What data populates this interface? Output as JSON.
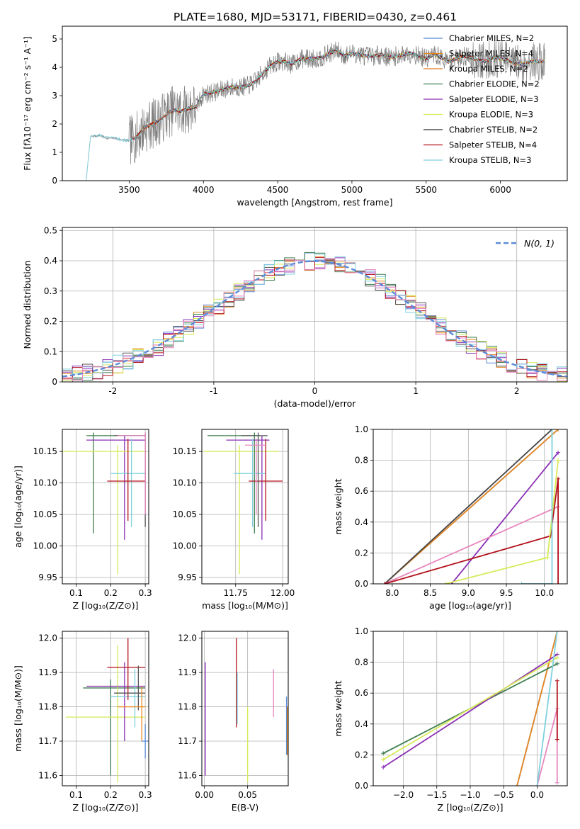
{
  "figure": {
    "title": "PLATE=1680, MJD=53171, FIBERID=0430, z=0.461"
  },
  "chart_data": [
    {
      "id": "spectrum",
      "type": "line",
      "xlabel": "wavelength [Angstrom, rest frame]",
      "ylabel": "Flux [fλ10⁻¹⁷ erg cm⁻² s⁻¹ A⁻¹]",
      "xlim": [
        3050,
        6450
      ],
      "ylim": [
        0,
        5.45
      ],
      "xticks": [
        3500,
        4000,
        4500,
        5000,
        5500,
        6000
      ],
      "yticks": [
        0,
        1,
        2,
        3,
        4,
        5
      ],
      "legend_position": "top-right",
      "data_envelope": {
        "x": [
          3210,
          3240,
          3300,
          3350,
          3400,
          3450,
          3500,
          3550,
          3600,
          3650,
          3700,
          3750,
          3800,
          3850,
          3900,
          3950,
          4000,
          4050,
          4100,
          4150,
          4200,
          4250,
          4300,
          4350,
          4400,
          4450,
          4500,
          4550,
          4600,
          4650,
          4700,
          4750,
          4800,
          4850,
          4900,
          4950,
          5000,
          5050,
          5100,
          5150,
          5200,
          5250,
          5300,
          5350,
          5400,
          5450,
          5500,
          5550,
          5600,
          5650,
          5700,
          5750,
          5800,
          5850,
          5900,
          5950,
          6000,
          6050,
          6100,
          6150,
          6200
        ],
        "y": [
          0,
          1.55,
          1.6,
          1.5,
          1.5,
          1.45,
          1.4,
          1.55,
          1.85,
          2.0,
          2.1,
          2.35,
          2.5,
          2.45,
          2.55,
          2.6,
          3.05,
          3.1,
          3.15,
          3.25,
          3.3,
          3.3,
          3.35,
          3.5,
          3.8,
          4.05,
          4.2,
          4.2,
          4.1,
          4.3,
          4.3,
          4.3,
          4.35,
          4.5,
          4.6,
          4.4,
          4.5,
          4.45,
          4.4,
          4.4,
          4.45,
          4.35,
          4.4,
          4.45,
          4.5,
          4.4,
          4.3,
          4.45,
          4.35,
          4.2,
          4.3,
          4.4,
          4.35,
          4.25,
          4.2,
          4.35,
          4.3,
          4.25,
          4.15,
          4.1,
          4.2
        ]
      },
      "series": [
        {
          "name": "Chabrier MILES, N_SSP=2",
          "color": "#5b8bd8",
          "start": 3520
        },
        {
          "name": "Salpeter MILES, N_SSP=4",
          "color": "#e8871e",
          "start": 3520
        },
        {
          "name": "Kroupa MILES, N_SSP=2",
          "color": "#e07a1f",
          "start": 3520
        },
        {
          "name": "Chabrier ELODIE, N_SSP=2",
          "color": "#3f7f4f",
          "start": 3900
        },
        {
          "name": "Salpeter ELODIE, N_SSP=3",
          "color": "#8b2fb5",
          "start": 3900
        },
        {
          "name": "Kroupa ELODIE, N_SSP=3",
          "color": "#d7ea56",
          "start": 3900
        },
        {
          "name": "Chabrier STELIB, N_SSP=2",
          "color": "#333333",
          "start": 3520
        },
        {
          "name": "Salpeter STELIB, N_SSP=4",
          "color": "#b3111b",
          "start": 3520
        },
        {
          "name": "Kroupa STELIB, N_SSP=3",
          "color": "#7fd1de",
          "start": 3210
        }
      ]
    },
    {
      "id": "residuals",
      "type": "line",
      "xlabel": "(data-model)/error",
      "ylabel": "Normed distribution",
      "xlim": [
        -2.5,
        2.5
      ],
      "ylim": [
        0,
        0.51
      ],
      "xticks": [
        -2,
        -1,
        0,
        1,
        2
      ],
      "yticks": [
        0.0,
        0.1,
        0.2,
        0.3,
        0.4,
        0.5
      ],
      "grid": true,
      "legend_position": "top-right",
      "legend": "N(0, 1)",
      "normal_curve": {
        "mean": 0,
        "sigma": 1,
        "color": "#5b8bd8"
      },
      "hist_colors": [
        "#5b8bd8",
        "#e8871e",
        "#3f7f4f",
        "#8b2fb5",
        "#d7ea56",
        "#555555",
        "#b3111b",
        "#7fd1de",
        "#e887bf"
      ]
    },
    {
      "id": "age-vs-Z",
      "type": "scatter",
      "xlabel": "Z [log₁₀(Z/Z⊙)]",
      "ylabel": "age  [log₁₀(age/yr)]",
      "xlim": [
        0.06,
        0.31
      ],
      "ylim": [
        9.94,
        10.185
      ],
      "xticks": [
        "0.1",
        "0.2",
        "0.3"
      ],
      "yticks": [
        "9.95",
        "10.00",
        "10.05",
        "10.10",
        "10.15"
      ],
      "grid": true,
      "points": [
        {
          "x": 0.15,
          "y": 10.175,
          "ex": [
            0.13,
            0.3
          ],
          "ey": [
            10.02,
            10.18
          ],
          "color": "#3f7f4f"
        },
        {
          "x": 0.24,
          "y": 10.168,
          "ex": [
            0.13,
            0.3
          ],
          "ey": [
            10.01,
            10.175
          ],
          "color": "#8b2fb5"
        },
        {
          "x": 0.22,
          "y": 10.15,
          "ex": [
            0.06,
            0.3
          ],
          "ey": [
            9.955,
            10.16
          ],
          "color": "#d7ea56"
        },
        {
          "x": 0.26,
          "y": 10.115,
          "ex": [
            0.2,
            0.3
          ],
          "ey": [
            10.03,
            10.17
          ],
          "color": "#7fd1de"
        },
        {
          "x": 0.25,
          "y": 10.103,
          "ex": [
            0.19,
            0.3
          ],
          "ey": [
            10.04,
            10.17
          ],
          "color": "#b3111b"
        },
        {
          "x": 0.3,
          "y": 10.175,
          "ex": [
            0.21,
            0.3
          ],
          "ey": [
            10.03,
            10.18
          ],
          "color": "#555555"
        },
        {
          "x": 0.3,
          "y": 10.175,
          "ex": [
            0.22,
            0.3
          ],
          "ey": [
            10.05,
            10.18
          ],
          "color": "#e887bf"
        }
      ]
    },
    {
      "id": "age-vs-mass",
      "type": "scatter",
      "xlabel": "mass [log₁₀(M/M⊙)]",
      "ylabel": "",
      "xlim": [
        11.57,
        12.03
      ],
      "ylim": [
        9.94,
        10.185
      ],
      "xticks": [
        "11.75",
        "12.00"
      ],
      "yticks": [
        "9.95",
        "10.00",
        "10.05",
        "10.10",
        "10.15"
      ],
      "grid": true,
      "points": [
        {
          "x": 11.77,
          "y": 10.15,
          "ex": [
            11.58,
            11.98
          ],
          "ey": [
            9.955,
            10.16
          ],
          "color": "#d7ea56"
        },
        {
          "x": 11.85,
          "y": 10.175,
          "ex": [
            11.6,
            11.88
          ],
          "ey": [
            10.02,
            10.18
          ],
          "color": "#3f7f4f"
        },
        {
          "x": 11.89,
          "y": 10.168,
          "ex": [
            11.7,
            11.93
          ],
          "ey": [
            10.01,
            10.175
          ],
          "color": "#8b2fb5"
        },
        {
          "x": 11.84,
          "y": 10.115,
          "ex": [
            11.74,
            11.91
          ],
          "ey": [
            10.03,
            10.17
          ],
          "color": "#7fd1de"
        },
        {
          "x": 11.91,
          "y": 10.103,
          "ex": [
            11.82,
            12.0
          ],
          "ey": [
            10.04,
            10.17
          ],
          "color": "#b3111b"
        },
        {
          "x": 11.87,
          "y": 10.175,
          "ex": [
            11.78,
            11.92
          ],
          "ey": [
            10.03,
            10.18
          ],
          "color": "#555555"
        },
        {
          "x": 11.86,
          "y": 10.16,
          "ex": [
            11.8,
            11.91
          ],
          "ey": [
            10.05,
            10.17
          ],
          "color": "#e887bf"
        }
      ]
    },
    {
      "id": "mass-weight-vs-age",
      "type": "line",
      "xlabel": "age  [log₁₀(age/yr)]",
      "ylabel": "mass weight",
      "xlim": [
        7.75,
        10.3
      ],
      "ylim": [
        0,
        1.0
      ],
      "xticks": [
        "8.0",
        "8.5",
        "9.0",
        "9.5",
        "10.0"
      ],
      "yticks": [
        "0.0",
        "0.2",
        "0.4",
        "0.6",
        "0.8",
        "1.0"
      ],
      "grid": true,
      "series": [
        {
          "color": "#5b8bd8",
          "x": [
            7.9,
            10.18
          ],
          "y": [
            0.0,
            1.0
          ]
        },
        {
          "color": "#e8871e",
          "x": [
            7.9,
            10.18
          ],
          "y": [
            0.0,
            1.0
          ]
        },
        {
          "color": "#444444",
          "x": [
            7.9,
            10.1
          ],
          "y": [
            0.0,
            1.0
          ]
        },
        {
          "color": "#8b2fb5",
          "x": [
            8.78,
            10.18
          ],
          "y": [
            0.0,
            0.85
          ]
        },
        {
          "color": "#e887bf",
          "x": [
            7.9,
            10.18
          ],
          "y": [
            0.0,
            0.5
          ]
        },
        {
          "color": "#b3111b",
          "x": [
            7.9,
            10.08,
            10.18,
            10.18
          ],
          "y": [
            0.0,
            0.31,
            0.68,
            0.0
          ]
        },
        {
          "color": "#d7ea56",
          "x": [
            8.7,
            10.04,
            10.18
          ],
          "y": [
            0.0,
            0.17,
            0.8
          ]
        },
        {
          "color": "#7fd1de",
          "x": [
            9.7,
            10.1,
            10.1
          ],
          "y": [
            0.0,
            0.0,
            1.0
          ]
        }
      ]
    },
    {
      "id": "mass-vs-Z",
      "type": "scatter",
      "xlabel": "Z [log₁₀(Z/Z⊙)]",
      "ylabel": "mass [log₁₀(M/M⊙)]",
      "xlim": [
        0.06,
        0.31
      ],
      "ylim": [
        11.57,
        12.02
      ],
      "xticks": [
        "0.1",
        "0.2",
        "0.3"
      ],
      "yticks": [
        "11.6",
        "11.7",
        "11.8",
        "11.9",
        "12.0"
      ],
      "grid": true,
      "points": [
        {
          "x": 0.2,
          "y": 11.855,
          "ex": [
            0.12,
            0.3
          ],
          "ey": [
            11.6,
            11.88
          ],
          "color": "#3f7f4f"
        },
        {
          "x": 0.22,
          "y": 11.77,
          "ex": [
            0.07,
            0.3
          ],
          "ey": [
            11.58,
            11.98
          ],
          "color": "#d7ea56"
        },
        {
          "x": 0.24,
          "y": 11.86,
          "ex": [
            0.13,
            0.3
          ],
          "ey": [
            11.7,
            11.93
          ],
          "color": "#8b2fb5"
        },
        {
          "x": 0.27,
          "y": 11.83,
          "ex": [
            0.2,
            0.3
          ],
          "ey": [
            11.74,
            11.91
          ],
          "color": "#7fd1de"
        },
        {
          "x": 0.25,
          "y": 11.915,
          "ex": [
            0.19,
            0.3
          ],
          "ey": [
            11.82,
            12.0
          ],
          "color": "#b3111b"
        },
        {
          "x": 0.28,
          "y": 11.84,
          "ex": [
            0.21,
            0.3
          ],
          "ey": [
            11.79,
            11.92
          ],
          "color": "#555555"
        },
        {
          "x": 0.29,
          "y": 11.8,
          "ex": [
            0.22,
            0.3
          ],
          "ey": [
            11.7,
            11.86
          ],
          "color": "#e8871e"
        },
        {
          "x": 0.3,
          "y": 11.7,
          "ex": [
            0.29,
            0.31
          ],
          "ey": [
            11.65,
            11.75
          ],
          "color": "#5b8bd8"
        }
      ]
    },
    {
      "id": "mass-vs-ebv",
      "type": "scatter",
      "xlabel": "E(B-V)",
      "ylabel": "",
      "xlim": [
        -0.003,
        0.097
      ],
      "ylim": [
        11.57,
        12.02
      ],
      "xticks": [
        "0.00",
        "0.05"
      ],
      "yticks": [
        "11.6",
        "11.7",
        "11.8",
        "11.9",
        "12.0"
      ],
      "grid": true,
      "points": [
        {
          "x": 0.001,
          "y": 11.77,
          "ey": [
            11.6,
            11.93
          ],
          "color": "#8b2fb5"
        },
        {
          "x": 0.037,
          "y": 11.88,
          "ey": [
            11.74,
            12.0
          ],
          "color": "#b3111b"
        },
        {
          "x": 0.038,
          "y": 11.83,
          "ey": [
            11.75,
            11.9
          ],
          "color": "#7fd1de"
        },
        {
          "x": 0.05,
          "y": 11.72,
          "ey": [
            11.58,
            11.8
          ],
          "color": "#d7ea56"
        },
        {
          "x": 0.08,
          "y": 11.84,
          "ey": [
            11.77,
            11.91
          ],
          "color": "#e887bf"
        },
        {
          "x": 0.095,
          "y": 11.75,
          "ey": [
            11.66,
            11.83
          ],
          "color": "#5b8bd8"
        },
        {
          "x": 0.096,
          "y": 11.72,
          "ey": [
            11.66,
            11.8
          ],
          "color": "#e8871e"
        }
      ]
    },
    {
      "id": "mass-weight-vs-Z",
      "type": "line",
      "xlabel": "Z [log₁₀(Z/Z⊙)]",
      "ylabel": "mass weight",
      "xlim": [
        -2.45,
        0.45
      ],
      "ylim": [
        0,
        1.0
      ],
      "xticks": [
        "−2.0",
        "−1.5",
        "−1.0",
        "−0.5",
        "0.0"
      ],
      "yticks": [
        "0.0",
        "0.2",
        "0.4",
        "0.6",
        "0.8",
        "1.0"
      ],
      "grid": true,
      "series": [
        {
          "color": "#5b8bd8",
          "x": [
            -0.3,
            0.3
          ],
          "y": [
            0.0,
            1.0
          ]
        },
        {
          "color": "#e8871e",
          "x": [
            -0.3,
            0.3
          ],
          "y": [
            0.0,
            1.0
          ]
        },
        {
          "color": "#3f7f4f",
          "x": [
            -2.3,
            0.3
          ],
          "y": [
            0.21,
            0.79
          ]
        },
        {
          "color": "#8b2fb5",
          "x": [
            -2.3,
            0.3
          ],
          "y": [
            0.12,
            0.85
          ]
        },
        {
          "color": "#d7ea56",
          "x": [
            -2.3,
            0.3
          ],
          "y": [
            0.17,
            0.83
          ]
        },
        {
          "color": "#e887bf",
          "x": [
            0.0,
            0.3,
            0.3
          ],
          "y": [
            0.0,
            0.5,
            0.02
          ]
        },
        {
          "color": "#b3111b",
          "x": [
            0.3,
            0.3
          ],
          "y": [
            0.3,
            0.68
          ]
        },
        {
          "color": "#7fd1de",
          "x": [
            0.0,
            0.3
          ],
          "y": [
            0.0,
            1.0
          ]
        }
      ]
    }
  ]
}
